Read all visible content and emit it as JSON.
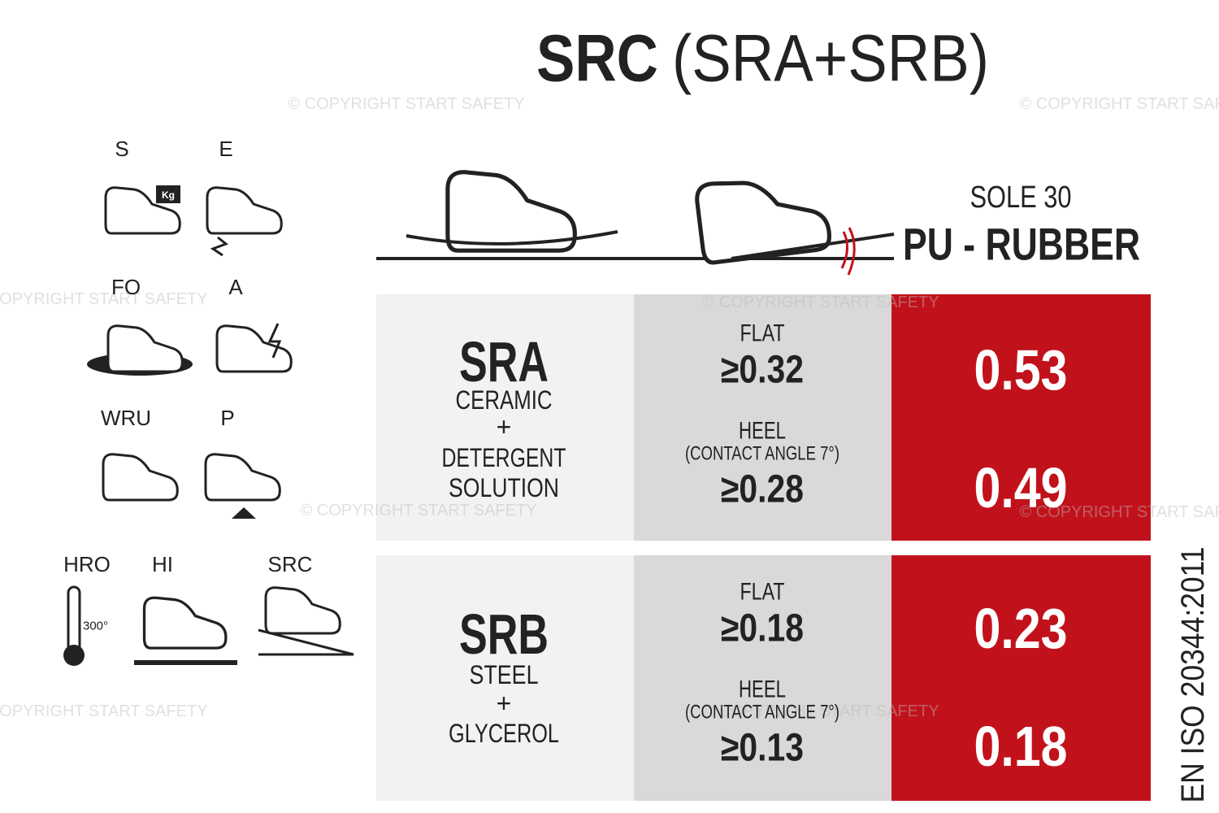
{
  "title": {
    "main": "SRC",
    "sub": "(SRA+SRB)"
  },
  "watermark": "© COPYRIGHT START SAFETY",
  "icons": [
    {
      "label": "S",
      "badge": "Kg"
    },
    {
      "label": "E"
    },
    {
      "label": "FO"
    },
    {
      "label": "A"
    },
    {
      "label": "WRU"
    },
    {
      "label": "P"
    },
    {
      "label": "HRO",
      "badge": "300°"
    },
    {
      "label": "HI"
    },
    {
      "label": "SRC"
    }
  ],
  "sole": {
    "model": "SOLE 30",
    "material": "PU - RUBBER"
  },
  "tests": [
    {
      "name": "SRA",
      "condition": [
        "CERAMIC",
        "+",
        "DETERGENT",
        "SOLUTION"
      ],
      "flat": {
        "label": "FLAT",
        "requirement": "≥0.32",
        "result": "0.53"
      },
      "heel": {
        "label": "HEEL",
        "note": "(CONTACT ANGLE 7°)",
        "requirement": "≥0.28",
        "result": "0.49"
      }
    },
    {
      "name": "SRB",
      "condition": [
        "STEEL",
        "+",
        "GLYCEROL"
      ],
      "flat": {
        "label": "FLAT",
        "requirement": "≥0.18",
        "result": "0.23"
      },
      "heel": {
        "label": "HEEL",
        "note": "(CONTACT ANGLE 7°)",
        "requirement": "≥0.13",
        "result": "0.18"
      }
    }
  ],
  "standard": "EN ISO 20344:2011"
}
